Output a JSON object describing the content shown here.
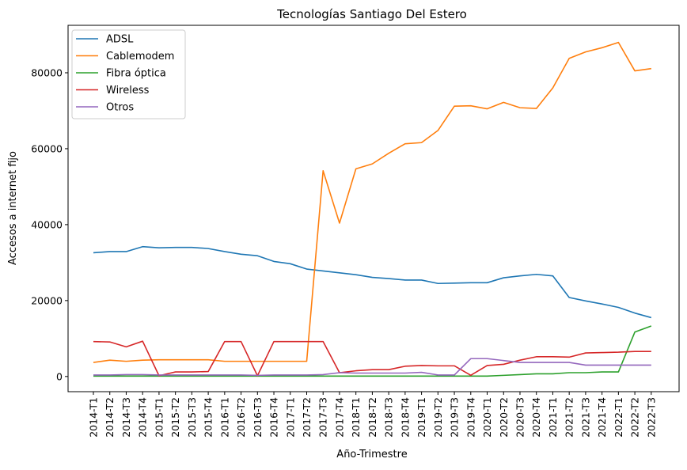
{
  "chart_data": {
    "type": "line",
    "title": "Tecnologías Santiago Del Estero",
    "xlabel": "Año-Trimestre",
    "ylabel": "Accesos a internet fijo",
    "ylim": [
      -4000,
      92500
    ],
    "yticks": [
      0,
      20000,
      40000,
      60000,
      80000
    ],
    "grid": false,
    "legend_position": "top-left",
    "categories": [
      "2014-T1",
      "2014-T2",
      "2014-T3",
      "2014-T4",
      "2015-T1",
      "2015-T2",
      "2015-T3",
      "2015-T4",
      "2016-T1",
      "2016-T2",
      "2016-T3",
      "2016-T4",
      "2017-T1",
      "2017-T2",
      "2017-T3",
      "2017-T4",
      "2018-T1",
      "2018-T2",
      "2018-T3",
      "2018-T4",
      "2019-T1",
      "2019-T2",
      "2019-T3",
      "2019-T4",
      "2020-T1",
      "2020-T2",
      "2020-T3",
      "2020-T4",
      "2021-T1",
      "2021-T2",
      "2021-T3",
      "2021-T4",
      "2022-T1",
      "2022-T2",
      "2022-T3"
    ],
    "series": [
      {
        "name": "ADSL",
        "color": "#1f77b4",
        "values": [
          32600,
          32900,
          32900,
          34200,
          33900,
          34000,
          34000,
          33700,
          32900,
          32200,
          31800,
          30300,
          29700,
          28300,
          27800,
          27300,
          26800,
          26100,
          25800,
          25400,
          25400,
          24500,
          24600,
          24700,
          24700,
          26000,
          26500,
          26900,
          26500,
          20800,
          19900,
          19100,
          18200,
          16700,
          15500
        ]
      },
      {
        "name": "Cablemodem",
        "color": "#ff7f0e",
        "values": [
          3700,
          4300,
          4000,
          4300,
          4400,
          4400,
          4400,
          4400,
          4000,
          4000,
          4000,
          4000,
          4000,
          4000,
          54200,
          40400,
          54700,
          56000,
          58800,
          61300,
          61600,
          64800,
          71200,
          71300,
          70500,
          72200,
          70800,
          70600,
          76000,
          83800,
          85500,
          86600,
          88000,
          80500,
          81100
        ]
      },
      {
        "name": "Fibra óptica",
        "color": "#2ca02c",
        "values": [
          100,
          100,
          100,
          100,
          100,
          100,
          100,
          100,
          100,
          100,
          100,
          100,
          100,
          100,
          100,
          100,
          100,
          100,
          100,
          100,
          100,
          100,
          100,
          100,
          100,
          300,
          500,
          700,
          700,
          1000,
          1000,
          1200,
          1200,
          11700,
          13300
        ]
      },
      {
        "name": "Wireless",
        "color": "#d62728",
        "values": [
          9200,
          9100,
          7800,
          9300,
          200,
          1200,
          1200,
          1300,
          9200,
          9200,
          200,
          9200,
          9200,
          9200,
          9200,
          1000,
          1500,
          1800,
          1800,
          2700,
          2900,
          2800,
          2800,
          300,
          2900,
          3200,
          4300,
          5200,
          5200,
          5100,
          6200,
          6300,
          6400,
          6600,
          6600
        ]
      },
      {
        "name": "Otros",
        "color": "#9467bd",
        "values": [
          400,
          400,
          500,
          500,
          400,
          400,
          400,
          400,
          400,
          400,
          300,
          400,
          400,
          400,
          500,
          1000,
          900,
          900,
          900,
          900,
          1100,
          400,
          400,
          4700,
          4700,
          4200,
          3700,
          3700,
          3700,
          3700,
          3000,
          3000,
          3000,
          3000,
          3000
        ]
      }
    ]
  }
}
